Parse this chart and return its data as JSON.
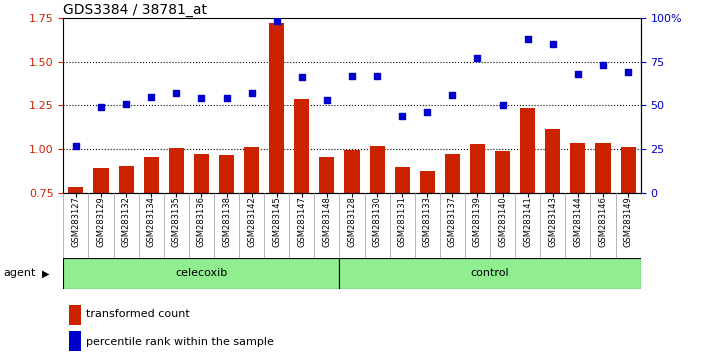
{
  "title": "GDS3384 / 38781_at",
  "samples": [
    "GSM283127",
    "GSM283129",
    "GSM283132",
    "GSM283134",
    "GSM283135",
    "GSM283136",
    "GSM283138",
    "GSM283142",
    "GSM283145",
    "GSM283147",
    "GSM283148",
    "GSM283128",
    "GSM283130",
    "GSM283131",
    "GSM283133",
    "GSM283137",
    "GSM283139",
    "GSM283140",
    "GSM283141",
    "GSM283143",
    "GSM283144",
    "GSM283146",
    "GSM283149"
  ],
  "bar_values": [
    0.785,
    0.895,
    0.905,
    0.955,
    1.005,
    0.97,
    0.965,
    1.01,
    1.72,
    1.285,
    0.955,
    0.995,
    1.02,
    0.9,
    0.875,
    0.975,
    1.03,
    0.99,
    1.235,
    1.115,
    1.035,
    1.035,
    1.01
  ],
  "dot_values": [
    27,
    49,
    51,
    55,
    57,
    54,
    54,
    57,
    98,
    66,
    53,
    67,
    67,
    44,
    46,
    56,
    77,
    50,
    88,
    85,
    68,
    73,
    69
  ],
  "celecoxib_count": 11,
  "control_count": 12,
  "ylim_left": [
    0.75,
    1.75
  ],
  "ylim_right": [
    0,
    100
  ],
  "yticks_left": [
    0.75,
    1.0,
    1.25,
    1.5,
    1.75
  ],
  "yticks_right": [
    0,
    25,
    50,
    75,
    100
  ],
  "bar_color": "#CC2200",
  "dot_color": "#0000CC",
  "tick_area_color": "#C8C8C8",
  "celecoxib_color": "#90EE90",
  "control_color": "#90EE90",
  "legend_bar_label": "transformed count",
  "legend_dot_label": "percentile rank within the sample",
  "agent_label": "agent"
}
